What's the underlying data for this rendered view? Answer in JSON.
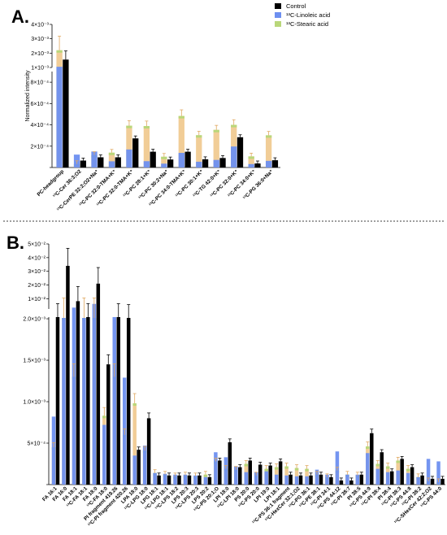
{
  "panel_a_label": "A.",
  "panel_b_label": "B.",
  "legend": {
    "items": [
      {
        "label": "Control",
        "color": "#000000"
      },
      {
        "label": "¹³C-Linoleic acid",
        "color": "#6d8ff0"
      },
      {
        "label": "¹³C-Stearic acid",
        "color": "#b9d77a"
      }
    ]
  },
  "colors": {
    "control": "#000000",
    "linoleic": "#6d8ff0",
    "stearic": "#b9d77a",
    "overlay": "#f0c88c",
    "error": "#e0a860",
    "error_linoleic": "#8fb1f7"
  },
  "chart_data": [
    {
      "type": "bar",
      "panel": "A",
      "ylabel": "Normalized intensity",
      "categories": [
        "PC-headgroup",
        "¹³C-Cer 36:3;O2",
        "¹³C-CerPE 32:2;O2+Na⁺",
        "¹³C-PC 32:0-TMA+K⁺",
        "¹³C-PC 32:0-TMA+K⁺",
        "¹³C-PC 28:1+K⁺",
        "¹³C-PC 30:2+Na⁺",
        "¹³C-PC 34:0-TMA+K⁺",
        "¹³C-PC 30:1+K⁺",
        "¹³C-TG 42:0+K⁺",
        "¹³C-PC 32:0+K⁺",
        "¹³C-PC 34:0+K⁺",
        "¹³C-PG 36:0+Na⁺"
      ],
      "y_ticks_lower": [
        "2×10⁻⁴",
        "4×10⁻⁴",
        "6×10⁻⁴",
        "8×10⁻⁴"
      ],
      "y_ticks_upper": [
        "1×10⁻³",
        "2×10⁻³",
        "3×10⁻³",
        "4×10⁻³"
      ],
      "series": [
        {
          "name": "Control",
          "values": [
            0.00155,
            6.5e-05,
            9.55e-05,
            9.55e-05,
            0.000273,
            0.000148,
            7.5e-05,
            0.000148,
            7.7e-05,
            8.9e-05,
            0.000284,
            3.8e-05,
            6.8e-05
          ]
        },
        {
          "name": "¹³C-Linoleic acid",
          "values": [
            0.00105,
            0.000121,
            0.00015,
            5.8e-05,
            0.000169,
            5.9e-05,
            3.6e-05,
            0.000137,
            5.4e-05,
            7.1e-05,
            0.000197,
            3.2e-05,
            6.2e-05
          ]
        },
        {
          "name": "¹³C-Stearic acid",
          "values": [
            0.0022,
            3.2e-05,
            0.000117,
            0.000139,
            0.000392,
            0.000389,
            0.000101,
            0.000483,
            0.000303,
            0.000353,
            0.0004,
            0.000104,
            0.000302
          ]
        }
      ]
    },
    {
      "type": "bar",
      "panel": "B",
      "ylabel": "",
      "categories": [
        "FA 16:1",
        "FA 16:0",
        "FA 18:1",
        "¹³C-FA 18:1",
        "FA 18:0",
        "¹³C-FA 18:0",
        "PI fragment 419.26",
        "¹³C-PI fragment 420.26",
        "LPA 18:0",
        "¹³C-LPG 18:0",
        "LPG 18:1",
        "¹³C-LPG 18:1",
        "¹³C-LPS 18:2",
        "LPS 20:3",
        "¹³C-LPS 20:3",
        "LPS 20:2",
        "¹³C-PS 20:1;O",
        "LPI 18:0",
        "¹³C-LPI 18:0",
        "PS 20:0",
        "¹³C-PS 20:0",
        "LPI 19:0",
        "LPI 18:1",
        "¹³C-PS 36:1 fragment",
        "¹³C-HexCer 32:1;O2",
        "¹³C-PG 36:1",
        "¹³C-PE 38:1",
        "¹³C-PI 34:1",
        "¹³C-PS 44:12",
        "¹³C-PI 38:7",
        "PI 38:5",
        "¹³C-PS 44:9",
        "¹³C-PI 38:4",
        "PI 38:4",
        "¹³C-PI 38:3",
        "¹³C-PS 44:8",
        "¹³C-PI 38:2",
        "¹³C-SHexCer 42:2;O2",
        "¹³C-PS 44:0"
      ],
      "y_ticks_lower": [
        "5×10⁻⁴",
        "1.0×10⁻³",
        "1.5×10⁻³",
        "2.0×10⁻³"
      ],
      "y_ticks_upper": [
        "1×10⁻²",
        "2×10⁻²",
        "3×10⁻²",
        "4×10⁻²",
        "5×10⁻²"
      ],
      "series": [
        {
          "name": "Control",
          "values": [
            0.0023,
            0.034,
            0.0082,
            0.0021,
            0.021,
            0.00145,
            0.0022,
            0.00201,
            0.00042,
            0.0008,
            0.00011,
            0.00011,
            0.00011,
            0.00011,
            0.00011,
            9e-05,
            0.00029,
            0.00051,
            0.00021,
            0.00029,
            0.00024,
            0.00023,
            0.00028,
            0.00012,
            0.00011,
            0.00011,
            0.00012,
            9e-05,
            5e-05,
            5e-05,
            0.00012,
            0.00062,
            0.00039,
            0.00016,
            0.00031,
            0.00021,
            0.00011,
            7e-05,
            7e-05
          ]
        },
        {
          "name": "¹³C-Linoleic acid",
          "values": [
            0.00082,
            0.00201,
            0.0035,
            0.00201,
            0.0062,
            0.00072,
            0.0021,
            0.00129,
            0.00035,
            0.00047,
            0.00014,
            0.00013,
            0.00012,
            0.00012,
            0.00011,
            9e-05,
            0.00039,
            0.00033,
            0.00022,
            0.00015,
            0.00015,
            0.00016,
            0.00012,
            0.00011,
            0.0001,
            0.0001,
            0.00018,
            0.00012,
            0.0004,
            0.00012,
            0.00012,
            0.00038,
            0.00019,
            0.00015,
            0.00017,
            0.00014,
            9e-05,
            0.00031,
            0.00028
          ]
        },
        {
          "name": "¹³C-Stearic acid",
          "values": [
            0.00045,
            0.00201,
            0.0013,
            0.00201,
            0.00201,
            0.00083,
            0.0013,
            0.0006,
            0.00098,
            0.00041,
            0.00014,
            0.00012,
            0.0001,
            0.00011,
            0.0001,
            0.00012,
            0.00028,
            0.00019,
            0.00018,
            0.00025,
            0.00011,
            0.00019,
            0.00021,
            0.00022,
            0.0002,
            0.00019,
            0.00012,
            9e-05,
            0.00017,
            0.00012,
            0.00011,
            0.00046,
            0.00025,
            0.00022,
            0.00029,
            0.00019,
            9e-05,
            4e-05,
            3e-05
          ]
        }
      ]
    }
  ]
}
